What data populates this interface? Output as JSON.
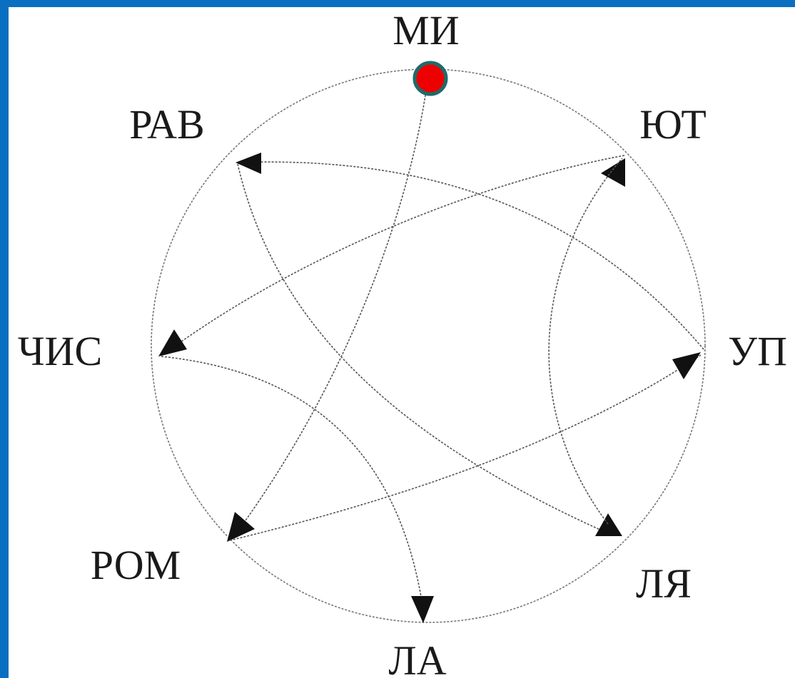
{
  "diagram": {
    "nodes": [
      {
        "id": "mi",
        "label": "МИ"
      },
      {
        "id": "yut",
        "label": "ЮТ"
      },
      {
        "id": "up",
        "label": "УП"
      },
      {
        "id": "lya",
        "label": "ЛЯ"
      },
      {
        "id": "la",
        "label": "ЛА"
      },
      {
        "id": "rom",
        "label": "РОМ"
      },
      {
        "id": "chis",
        "label": "ЧИС"
      },
      {
        "id": "rav",
        "label": "РАВ"
      }
    ],
    "edges": [
      {
        "from": "mi",
        "to": "rom"
      },
      {
        "from": "yut",
        "to": "chis"
      },
      {
        "from": "up",
        "to": "rav"
      },
      {
        "from": "rav",
        "to": "lya"
      },
      {
        "from": "lya",
        "to": "yut"
      },
      {
        "from": "rom",
        "to": "up"
      },
      {
        "from": "chis",
        "to": "la"
      }
    ],
    "highlight_node": "mi",
    "colors": {
      "background": "#0a6fc0",
      "panel": "#ffffff",
      "edge": "#555555",
      "arrow": "#111111",
      "highlight_fill": "#ee0000",
      "highlight_stroke": "#1f6b6b"
    }
  }
}
